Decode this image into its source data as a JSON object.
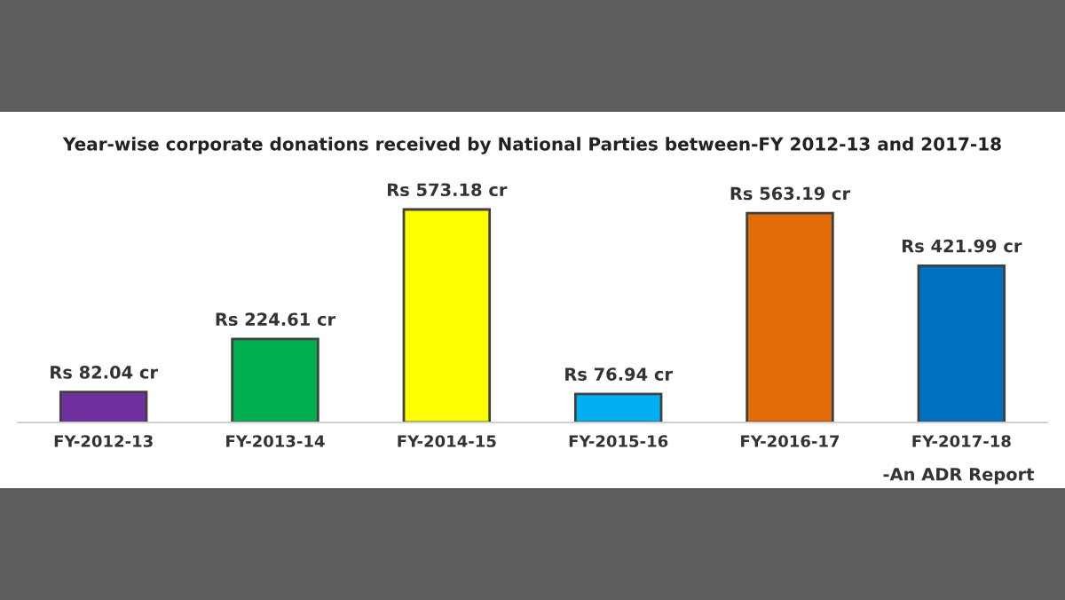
{
  "chart_data": {
    "type": "bar",
    "title": "Year-wise corporate donations received by National Parties between-FY 2012-13 and 2017-18",
    "categories": [
      "FY-2012-13",
      "FY-2013-14",
      "FY-2014-15",
      "FY-2015-16",
      "FY-2016-17",
      "FY-2017-18"
    ],
    "values": [
      82.04,
      224.61,
      573.18,
      76.94,
      563.19,
      421.99
    ],
    "colors": [
      "#7030a0",
      "#00b050",
      "#ffff00",
      "#00b0f0",
      "#e36c09",
      "#0070c0"
    ],
    "value_labels": [
      "Rs 82.04 cr",
      "Rs 224.61 cr",
      "Rs 573.18 cr",
      "Rs 76.94 cr",
      "Rs 563.19 cr",
      "Rs 421.99 cr"
    ],
    "annotations": [
      "-An ADR Report"
    ]
  }
}
